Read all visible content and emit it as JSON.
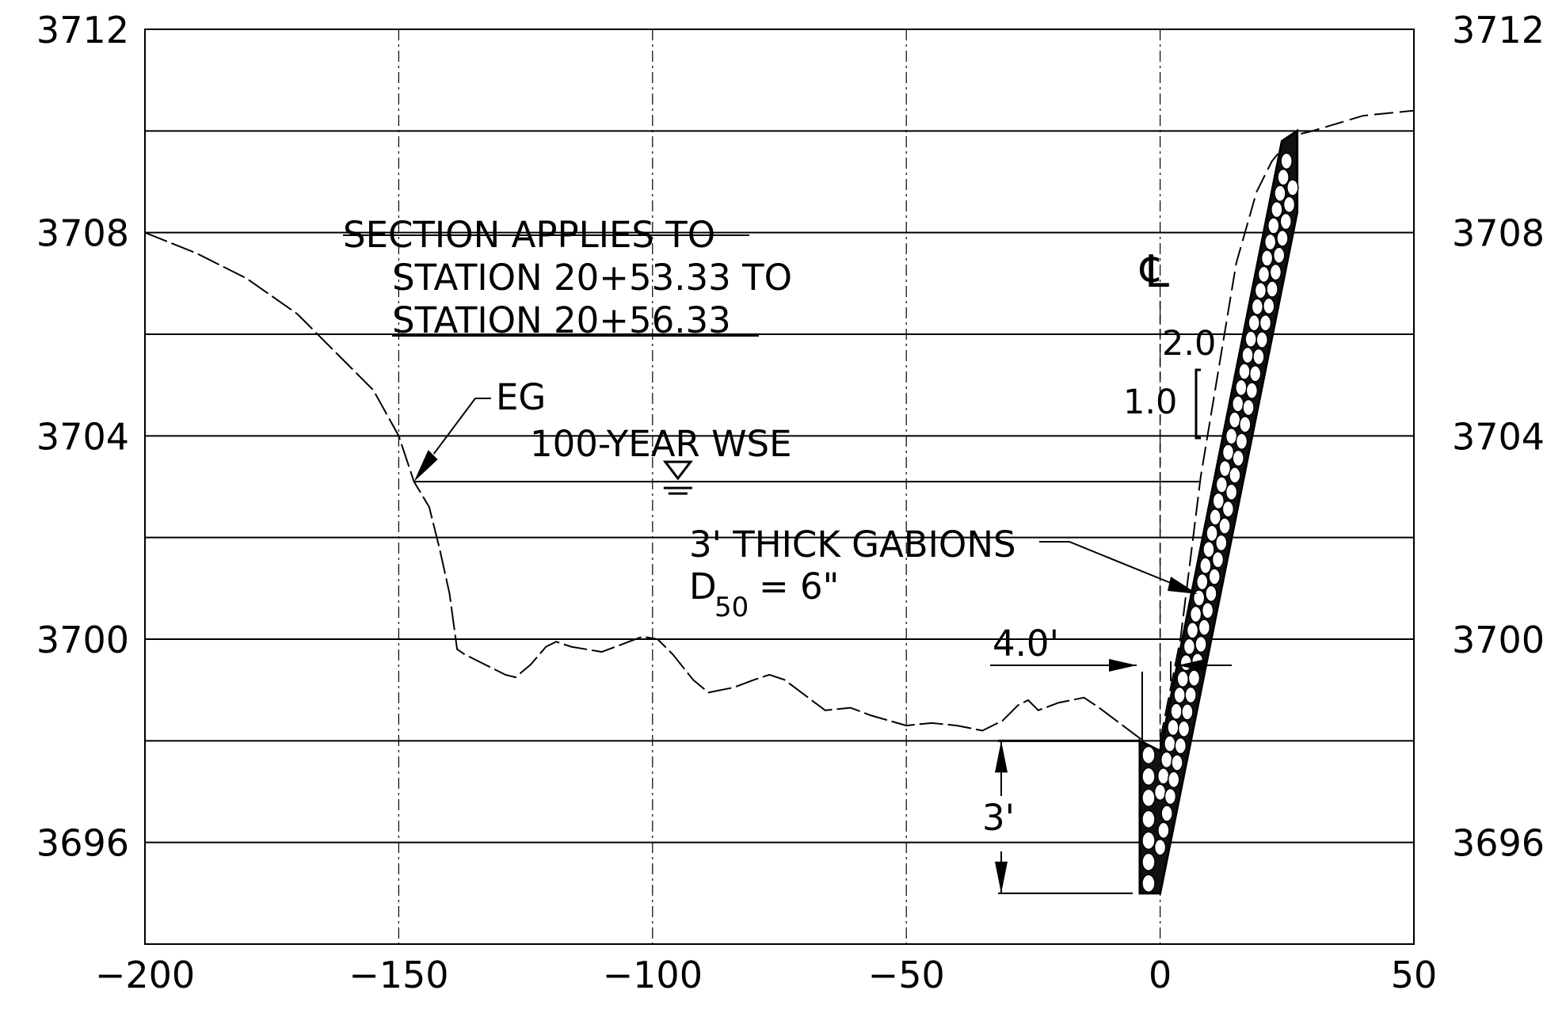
{
  "chart_data": {
    "type": "cross-section",
    "xlim": [
      -200,
      50
    ],
    "ylim": [
      3694,
      3712
    ],
    "x_ticks": [
      "-200",
      "-150",
      "-100",
      "-50",
      "0",
      "50"
    ],
    "y_ticks_left": [
      "3712",
      "3708",
      "3704",
      "3700",
      "3696"
    ],
    "y_ticks_right": [
      "3712",
      "3708",
      "3704",
      "3700",
      "3696"
    ],
    "x_tick_values": [
      -200,
      -150,
      -100,
      -50,
      0,
      50
    ],
    "y_tick_values": [
      3712,
      3708,
      3704,
      3700,
      3696
    ],
    "y_gridlines": [
      3710,
      3708,
      3706,
      3704,
      3702,
      3700,
      3698,
      3696
    ],
    "x_dash_gridlines": [
      -150,
      -100,
      -50,
      0
    ],
    "existing_ground": [
      [
        -200,
        3708.0
      ],
      [
        -190,
        3707.6
      ],
      [
        -180,
        3707.1
      ],
      [
        -170,
        3706.4
      ],
      [
        -165,
        3705.9
      ],
      [
        -160,
        3705.4
      ],
      [
        -155,
        3704.9
      ],
      [
        -150,
        3704.0
      ],
      [
        -147,
        3703.1
      ],
      [
        -144,
        3702.6
      ],
      [
        -142,
        3701.8
      ],
      [
        -140,
        3700.9
      ],
      [
        -138.5,
        3699.8
      ],
      [
        -137,
        3699.7
      ],
      [
        -133,
        3699.5
      ],
      [
        -129,
        3699.3
      ],
      [
        -127,
        3699.25
      ],
      [
        -124,
        3699.5
      ],
      [
        -121,
        3699.85
      ],
      [
        -119,
        3699.95
      ],
      [
        -116,
        3699.85
      ],
      [
        -110,
        3699.75
      ],
      [
        -106,
        3699.9
      ],
      [
        -102,
        3700.05
      ],
      [
        -99,
        3700.0
      ],
      [
        -96,
        3699.7
      ],
      [
        -92,
        3699.2
      ],
      [
        -89,
        3698.95
      ],
      [
        -84,
        3699.05
      ],
      [
        -80,
        3699.2
      ],
      [
        -77,
        3699.3
      ],
      [
        -74,
        3699.2
      ],
      [
        -70,
        3698.9
      ],
      [
        -66,
        3698.6
      ],
      [
        -61,
        3698.65
      ],
      [
        -57,
        3698.5
      ],
      [
        -50,
        3698.3
      ],
      [
        -45,
        3698.35
      ],
      [
        -40,
        3698.3
      ],
      [
        -35,
        3698.2
      ],
      [
        -31,
        3698.4
      ],
      [
        -28,
        3698.7
      ],
      [
        -26,
        3698.8
      ],
      [
        -24,
        3698.6
      ],
      [
        -20,
        3698.75
      ],
      [
        -15,
        3698.85
      ],
      [
        -12,
        3698.65
      ],
      [
        -8,
        3698.35
      ],
      [
        -4,
        3698.05
      ],
      [
        -3,
        3698.0
      ]
    ],
    "existing_bank": [
      [
        0,
        3698.0
      ],
      [
        4,
        3700.0
      ],
      [
        8,
        3703.2
      ],
      [
        13,
        3706.2
      ],
      [
        15,
        3707.4
      ],
      [
        17,
        3708.1
      ],
      [
        19,
        3708.8
      ],
      [
        22,
        3709.4
      ],
      [
        26,
        3709.9
      ],
      [
        30,
        3710.0
      ],
      [
        40,
        3710.3
      ],
      [
        50,
        3710.4
      ]
    ],
    "wse_elevation": 3703.1,
    "wse_extent": [
      -147,
      8
    ],
    "centerline_x": 0,
    "gabion": {
      "outer_top": [
        27,
        3710.0
      ],
      "outer_upper": [
        27,
        3708.4
      ],
      "outer_bottom": [
        0,
        3695.0
      ],
      "inner_top": [
        24,
        3709.8
      ],
      "inner_bottom": [
        0,
        3697.8
      ],
      "toe_left": -4,
      "toe_top": 3698.0,
      "toe_bottom": 3695.0
    },
    "slope": {
      "run": "2.0",
      "rise": "1.0"
    },
    "annotations": {
      "section_line1": "SECTION APPLIES TO",
      "section_line2": "STATION 20+53.33 TO",
      "section_line3": "STATION 20+56.33",
      "eg": "EG",
      "wse": "100-YEAR WSE",
      "gabions": "3' THICK GABIONS",
      "d50_main": "D",
      "d50_sub": "50",
      "d50_value": "= 6\"",
      "width_dim": "4.0'",
      "depth_dim": "3'",
      "centerline": "℄"
    }
  }
}
